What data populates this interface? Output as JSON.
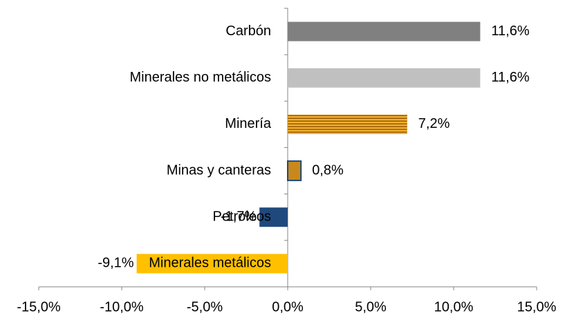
{
  "chart_data": {
    "type": "bar",
    "orientation": "horizontal",
    "categories": [
      "Carbón",
      "Minerales no metálicos",
      "Minería",
      "Minas y canteras",
      "Petroleos",
      "Minerales metálicos"
    ],
    "values": [
      11.6,
      11.6,
      7.2,
      0.8,
      -1.7,
      -9.1
    ],
    "value_labels": [
      "11,6%",
      "11,6%",
      "7,2%",
      "0,8%",
      "-1,7%",
      "-9,1%"
    ],
    "colors": [
      "#808080",
      "#c0c0c0",
      "#e59a12",
      "#c9891a",
      "#1f497d",
      "#ffc000"
    ],
    "xlim": [
      -15,
      15
    ],
    "xticks": [
      {
        "value": -15,
        "label": "-15,0%"
      },
      {
        "value": -10,
        "label": "-10,0%"
      },
      {
        "value": -5,
        "label": "-5,0%"
      },
      {
        "value": 0,
        "label": "0,0%"
      },
      {
        "value": 5,
        "label": "5,0%"
      },
      {
        "value": 10,
        "label": "10,0%"
      },
      {
        "value": 15,
        "label": "15,0%"
      }
    ],
    "grid": false
  }
}
